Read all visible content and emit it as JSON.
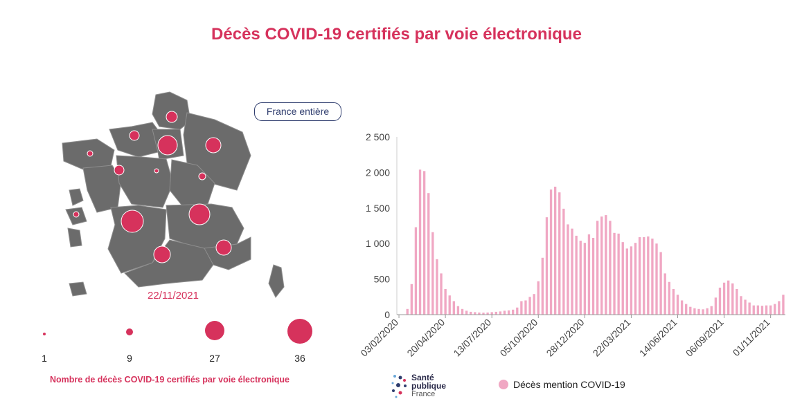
{
  "title": "Décès COVID-19 certifiés par voie électronique",
  "map": {
    "date": "22/11/2021",
    "button_label": "France entière",
    "region_color": "#6b6b6b",
    "bubble_color": "#d6325c",
    "legend": {
      "values": [
        "1",
        "9",
        "27",
        "36"
      ],
      "caption": "Nombre de décès COVID-19 certifiés par voie électronique"
    }
  },
  "logo": {
    "line1": "Santé",
    "line2": "publique",
    "line3": "France"
  },
  "series_legend": {
    "label": "Décès mention COVID-19",
    "color": "#f0a7c3"
  },
  "chart_data": {
    "type": "bar",
    "title": "",
    "xlabel": "",
    "ylabel": "",
    "ylim": [
      0,
      2500
    ],
    "yticks": [
      "0",
      "500",
      "1 000",
      "1 500",
      "2 000",
      "2 500"
    ],
    "x_ticks": [
      "03/02/2020",
      "20/04/2020",
      "13/07/2020",
      "05/10/2020",
      "28/12/2020",
      "22/03/2021",
      "14/06/2021",
      "06/09/2021",
      "01/11/2021"
    ],
    "series": [
      {
        "name": "Décès mention COVID-19",
        "color": "#f0a7c3",
        "values": [
          0,
          5,
          80,
          430,
          1230,
          2040,
          2020,
          1710,
          1160,
          780,
          580,
          360,
          270,
          190,
          120,
          80,
          55,
          40,
          35,
          30,
          28,
          30,
          35,
          40,
          45,
          55,
          60,
          70,
          100,
          190,
          200,
          250,
          290,
          470,
          800,
          1370,
          1760,
          1800,
          1720,
          1490,
          1270,
          1210,
          1110,
          1040,
          1010,
          1130,
          1080,
          1320,
          1380,
          1400,
          1320,
          1150,
          1140,
          1020,
          930,
          960,
          1010,
          1090,
          1090,
          1100,
          1070,
          1000,
          880,
          580,
          460,
          360,
          280,
          200,
          150,
          110,
          90,
          80,
          75,
          90,
          120,
          240,
          380,
          450,
          480,
          440,
          360,
          260,
          210,
          170,
          130,
          130,
          125,
          130,
          130,
          150,
          190,
          280
        ]
      }
    ]
  }
}
